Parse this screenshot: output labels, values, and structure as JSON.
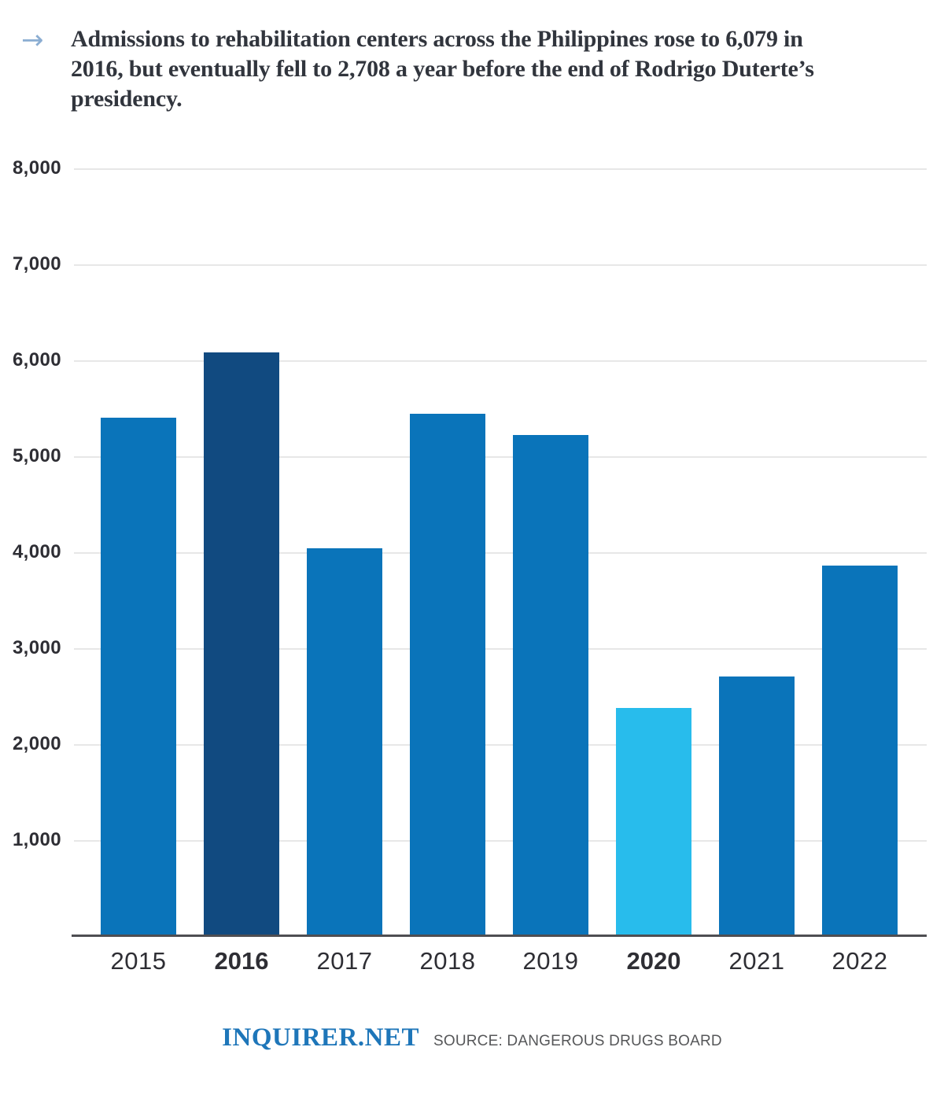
{
  "header": {
    "arrow_glyph": "→",
    "title": "Admissions to rehabilitation centers across the Philippines rose to 6,079 in 2016, but eventually fell to 2,708 a year before the end of Rodrigo Duterte’s presidency.",
    "title_lines": [
      "Admissions to rehabilitation centers across the Philippines rose to 6,079 in",
      "2016, but eventually fell to 2,708 a year before the end of Rodrigo Duterte’s",
      "presidency."
    ]
  },
  "chart_data": {
    "type": "bar",
    "categories": [
      "2015",
      "2016",
      "2017",
      "2018",
      "2019",
      "2020",
      "2021",
      "2022"
    ],
    "values": [
      5400,
      6079,
      4045,
      5440,
      5220,
      2380,
      2708,
      3865
    ],
    "bold_categories": [
      "2016",
      "2020"
    ],
    "bar_colors": [
      "#0a74ba",
      "#114a80",
      "#0a74ba",
      "#0a74ba",
      "#0a74ba",
      "#28bcec",
      "#0a74ba",
      "#0a74ba"
    ],
    "title": "",
    "xlabel": "",
    "ylabel": "",
    "ylim": [
      0,
      8000
    ],
    "grid": true,
    "legend": "none",
    "y_ticks": [
      {
        "value": 8000,
        "label": "8,000"
      },
      {
        "value": 7000,
        "label": "7,000"
      },
      {
        "value": 6000,
        "label": "6,000"
      },
      {
        "value": 5000,
        "label": "5,000"
      },
      {
        "value": 4000,
        "label": "4,000"
      },
      {
        "value": 3000,
        "label": "3,000"
      },
      {
        "value": 2000,
        "label": "2,000"
      },
      {
        "value": 1000,
        "label": "1,000"
      }
    ]
  },
  "footer": {
    "logo": "INQUIRER.NET",
    "source": "SOURCE: DANGEROUS DRUGS BOARD"
  },
  "colors": {
    "bar_default": "#0a74ba",
    "bar_2016_highlight": "#114a80",
    "bar_2020_highlight": "#28bcec",
    "gridline": "#e7e7e7",
    "axis_line": "#4e4e52",
    "tick_text": "#2e2e34",
    "title_text": "#31353d",
    "arrow": "#8badd2",
    "logo_blue": "#1e76b9",
    "source_text": "#565759"
  }
}
